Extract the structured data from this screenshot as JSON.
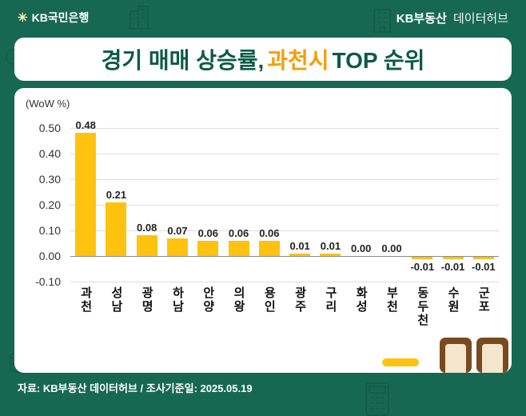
{
  "header": {
    "logo": {
      "symbol": "✳",
      "text": "KB국민은행"
    },
    "brand": {
      "bold": "KB부동산",
      "regular": "데이터허브"
    }
  },
  "title": {
    "part1": "경기 매매 상승률, ",
    "highlight": "과천시",
    "part2": " TOP 순위"
  },
  "chart_data": {
    "type": "bar",
    "title": "경기 매매 상승률, 과천시 TOP 순위",
    "unit_label": "(WoW %)",
    "categories": [
      "과천",
      "성남",
      "광명",
      "하남",
      "안양",
      "의왕",
      "용인",
      "광주",
      "구리",
      "화성",
      "부천",
      "동두천",
      "수원",
      "군포"
    ],
    "values": [
      0.48,
      0.21,
      0.08,
      0.07,
      0.06,
      0.06,
      0.06,
      0.01,
      0.01,
      0.0,
      0.0,
      -0.01,
      -0.01,
      -0.01
    ],
    "value_labels": [
      "0.48",
      "0.21",
      "0.08",
      "0.07",
      "0.06",
      "0.06",
      "0.06",
      "0.01",
      "0.01",
      "0.00",
      "0.00",
      "-0.01",
      "-0.01",
      "-0.01"
    ],
    "ylim": [
      -0.1,
      0.5
    ],
    "yticks": [
      0.5,
      0.4,
      0.3,
      0.2,
      0.1,
      0.0,
      -0.1
    ],
    "ytick_labels": [
      "0.50",
      "0.40",
      "0.30",
      "0.20",
      "0.10",
      "0.00",
      "-0.10"
    ],
    "grid": true,
    "legend": false,
    "bar_color": "#FFC20E"
  },
  "footer": {
    "text": "자료: KB부동산 데이터허브 / 조사기준일: 2025.05.19"
  },
  "colors": {
    "background_green": "#176852",
    "title_green": "#0C5B44",
    "highlight_orange": "#F59E00",
    "bar_yellow": "#FFC20E",
    "grid_gray": "#DEDEDE",
    "zero_line_gray": "#8A8A8A"
  },
  "icons": {
    "decorations": [
      "buildings-icon",
      "building-icon",
      "house-icon",
      "magnifier-icon",
      "coins-icon",
      "calculator-icon",
      "kb-star-icon"
    ]
  }
}
